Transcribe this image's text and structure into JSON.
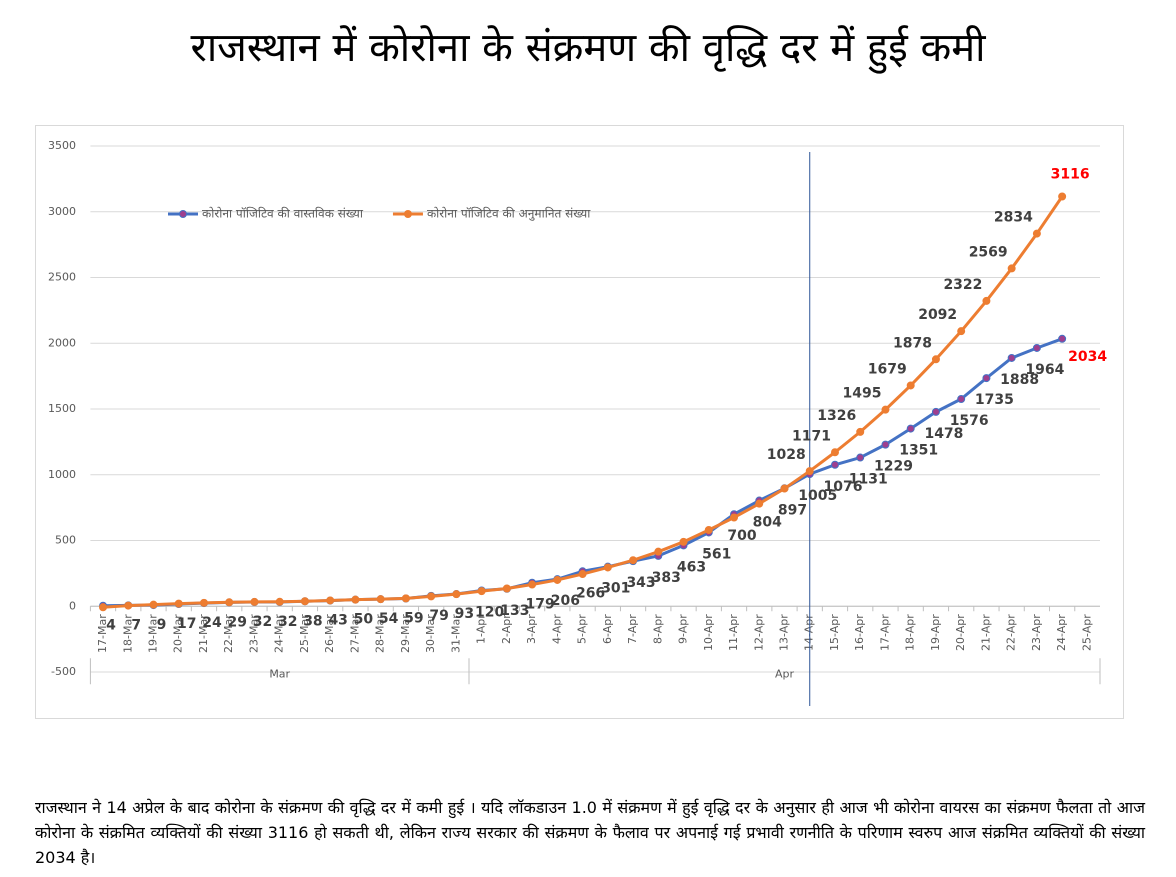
{
  "title": "राजस्थान में कोरोना के संक्रमण की वृद्धि दर में हुई कमी",
  "chart_data": {
    "type": "line",
    "categories": [
      "17-Mar",
      "18-Mar",
      "19-Mar",
      "20-Mar",
      "21-Mar",
      "22-Mar",
      "23-Mar",
      "24-Mar",
      "25-Mar",
      "26-Mar",
      "27-Mar",
      "28-Mar",
      "29-Mar",
      "30-Mar",
      "31-Mar",
      "1-Apr",
      "2-Apr",
      "3-Apr",
      "4-Apr",
      "5-Apr",
      "6-Apr",
      "7-Apr",
      "8-Apr",
      "9-Apr",
      "10-Apr",
      "11-Apr",
      "12-Apr",
      "13-Apr",
      "14-Apr",
      "15-Apr",
      "16-Apr",
      "17-Apr",
      "18-Apr",
      "19-Apr",
      "20-Apr",
      "21-Apr",
      "22-Apr",
      "23-Apr",
      "24-Apr",
      "25-Apr"
    ],
    "groups": [
      {
        "label": "Mar",
        "count": 15
      },
      {
        "label": "Apr",
        "count": 25
      }
    ],
    "series": [
      {
        "name": "कोरोना पॉजिटिव की वास्तविक संख्या",
        "color": "#4472c4",
        "marker_color": "#9e3f8f",
        "values": [
          4,
          7,
          9,
          17,
          24,
          29,
          32,
          32,
          38,
          43,
          50,
          54,
          59,
          79,
          93,
          120,
          133,
          179,
          206,
          266,
          301,
          343,
          383,
          463,
          561,
          700,
          804,
          897,
          1005,
          1076,
          1131,
          1229,
          1351,
          1478,
          1576,
          1735,
          1888,
          1964,
          2034,
          null
        ]
      },
      {
        "name": "कोरोना पॉजिटिव की अनुमानित संख्या",
        "color": "#ed7d31",
        "marker_color": "#ed7d31",
        "values": [
          -8,
          5,
          12,
          20,
          26,
          30,
          33,
          34,
          38,
          44,
          50,
          54,
          60,
          75,
          92,
          115,
          135,
          165,
          200,
          245,
          295,
          350,
          415,
          490,
          580,
          675,
          780,
          895,
          1028,
          1171,
          1326,
          1495,
          1679,
          1878,
          2092,
          2322,
          2569,
          2834,
          3116,
          null
        ],
        "value_labels": [
          null,
          null,
          null,
          null,
          null,
          null,
          null,
          null,
          null,
          null,
          null,
          null,
          null,
          null,
          null,
          null,
          null,
          null,
          null,
          null,
          null,
          null,
          null,
          null,
          null,
          null,
          null,
          null,
          "1028",
          "1171",
          "1326",
          "1495",
          "1679",
          "1878",
          "2092",
          "2322",
          "2569",
          "2834",
          "3116",
          null
        ]
      }
    ],
    "last_label_color": "#ff0000",
    "vline_at": "14-Apr",
    "ylim": [
      -500,
      3500
    ],
    "yticks": [
      -500,
      0,
      500,
      1000,
      1500,
      2000,
      2500,
      3000,
      3500
    ],
    "grid": true,
    "legend": "top-left"
  },
  "paragraph": "राजस्थान ने 14 अप्रेल के बाद कोरोना के संक्रमण की वृद्धि दर में कमी हुई । यदि लॉकडाउन 1.0 में संक्रमण में हुई वृद्धि दर के अनुसार ही आज भी कोरोना वायरस का संक्रमण फैलता तो आज कोरोना के संक्रमित व्यक्तियों की संख्या 3116 हो सकती थी, लेकिन राज्य सरकार की संक्रमण के फैलाव पर अपनाई गई प्रभावी रणनीति के परिणाम स्वरुप आज संक्रमित व्यक्तियों की संख्या 2034 है।"
}
